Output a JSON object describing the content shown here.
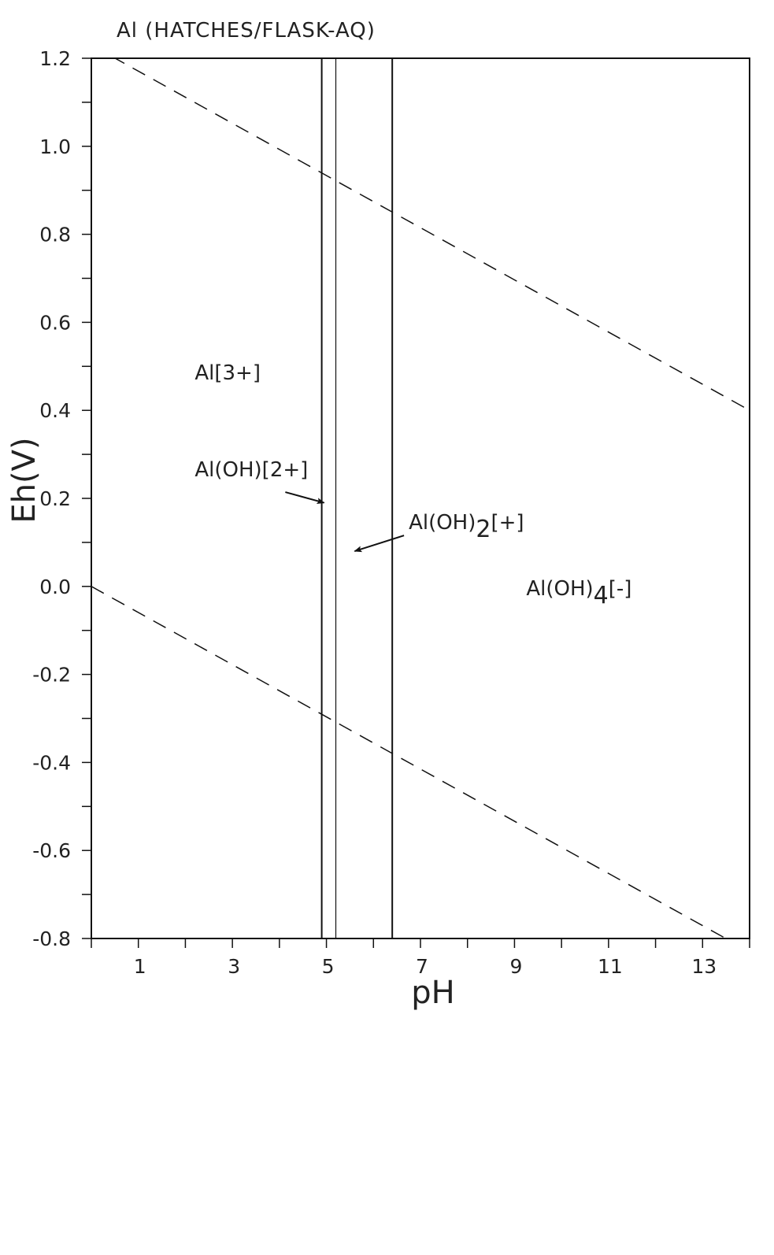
{
  "chart_data": {
    "type": "line",
    "title": "Al (HATCHES/FLASK-AQ)",
    "xlabel": "pH",
    "ylabel": "Eh(V)",
    "xlim": [
      0,
      14
    ],
    "ylim": [
      -0.8,
      1.2
    ],
    "x_tick_labels": [
      "1",
      "3",
      "5",
      "7",
      "9",
      "11",
      "13"
    ],
    "y_tick_labels": [
      "1.2",
      "1.0",
      "0.8",
      "0.6",
      "0.4",
      "0.2",
      "0.0",
      "-0.2",
      "-0.4",
      "-0.6",
      "-0.8"
    ],
    "grid": false,
    "boundaries": [
      {
        "name": "Al[3+] / Al(OH)[2+]",
        "pH": 4.9
      },
      {
        "name": "Al(OH)[2+] / Al(OH)2[+]",
        "pH": 5.2
      },
      {
        "name": "Al(OH)2[+] / Al(OH)4[-]",
        "pH": 6.4
      }
    ],
    "water_lines": [
      {
        "style": "dashed",
        "points": [
          [
            0,
            1.23
          ],
          [
            14,
            0.4
          ]
        ]
      },
      {
        "style": "dashed",
        "points": [
          [
            0,
            0.0
          ],
          [
            14,
            -0.83
          ]
        ]
      }
    ],
    "species_labels": [
      {
        "text": "Al[3+]",
        "parts": [
          "Al[3+]"
        ],
        "pH": 2.2,
        "Eh": 0.47
      },
      {
        "text": "Al(OH)[2+]",
        "parts": [
          "Al(OH)[2+]"
        ],
        "pH": 2.2,
        "Eh": 0.25,
        "arrow_to": [
          4.95,
          0.19
        ]
      },
      {
        "text": "Al(OH)2[+]",
        "parts": [
          "Al(OH)",
          "2",
          "[+]"
        ],
        "pH": 6.75,
        "Eh": 0.13,
        "arrow_to": [
          5.6,
          0.08
        ]
      },
      {
        "text": "Al(OH)4[-]",
        "parts": [
          "Al(OH)",
          "4",
          "[-]"
        ],
        "pH": 9.25,
        "Eh": -0.02
      }
    ]
  }
}
